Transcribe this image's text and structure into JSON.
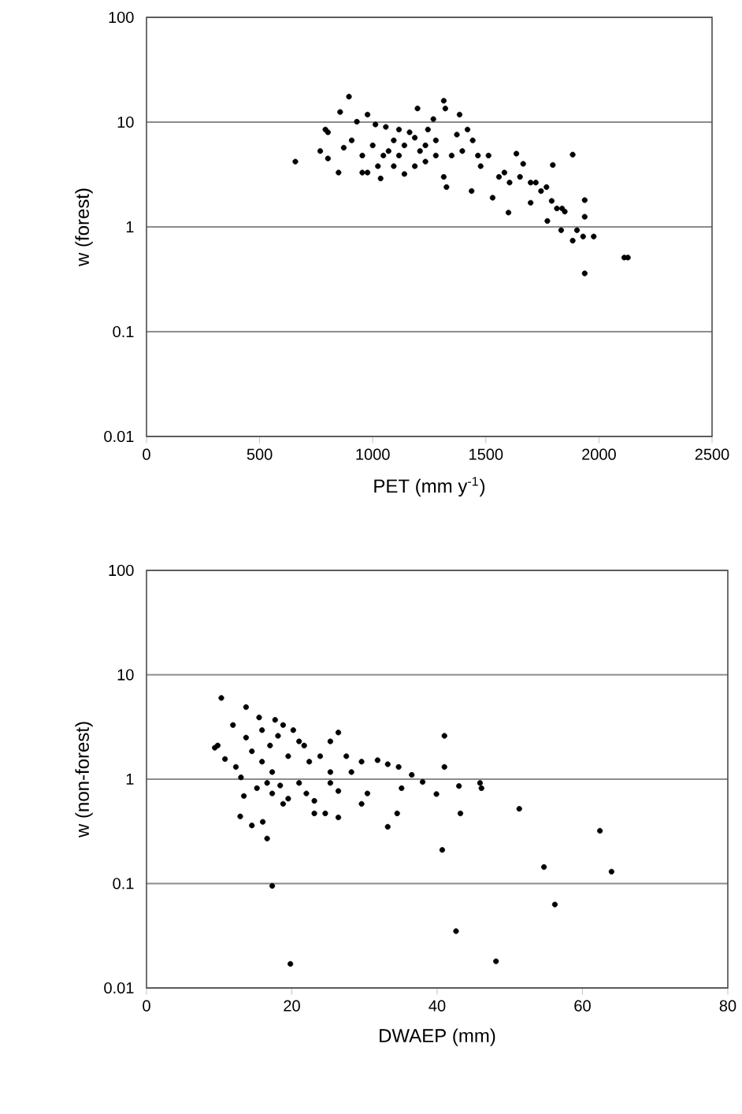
{
  "chart_data": [
    {
      "type": "scatter",
      "xlabel": "PET (mm y$^{-1}$)",
      "ylabel": "w (forest)",
      "color": "#000000",
      "log": "y",
      "grid": "y",
      "xlim": [
        0,
        2500
      ],
      "xticks": [
        0,
        500,
        1000,
        1500,
        2000,
        2500
      ],
      "ylim": [
        0.01,
        100
      ],
      "yticks": [
        0.01,
        0.1,
        1,
        10,
        100
      ],
      "x": [
        658,
        895,
        856,
        791,
        768,
        802,
        849,
        872,
        930,
        977,
        954,
        1035,
        1000,
        1058,
        1093,
        1116,
        1140,
        1163,
        1198,
        1209,
        1244,
        1268,
        1279,
        1314,
        1321,
        1384,
        1326,
        1314,
        1349,
        1372,
        1419,
        1442,
        1437,
        1477,
        1512,
        1530,
        1582,
        1600,
        1635,
        1651,
        1665,
        1698,
        1721,
        1768,
        1796,
        1772,
        1791,
        1837,
        1884,
        1833,
        1884,
        1903,
        1937,
        1937,
        1937,
        1930,
        1977,
        2112,
        2128,
        1070,
        1140,
        1186,
        1233,
        1279,
        1116,
        977,
        1023,
        1093,
        1186,
        1233,
        1396,
        1465,
        1558,
        1605,
        1698,
        1744,
        1814,
        1849,
        907,
        954,
        1047,
        802,
        1012
      ],
      "values": [
        4.2,
        17.5,
        12.5,
        8.5,
        5.3,
        4.5,
        3.3,
        5.7,
        10.1,
        11.8,
        3.3,
        2.9,
        6.0,
        9.0,
        6.7,
        4.8,
        3.2,
        8.0,
        13.5,
        5.3,
        8.5,
        10.7,
        6.7,
        16,
        13.5,
        11.8,
        2.4,
        3.0,
        4.8,
        7.6,
        8.5,
        6.7,
        2.2,
        3.8,
        4.8,
        1.9,
        3.3,
        1.37,
        5.0,
        3.0,
        4.0,
        1.7,
        2.65,
        2.4,
        3.9,
        1.14,
        1.77,
        1.5,
        4.9,
        0.93,
        0.74,
        0.93,
        1.8,
        1.25,
        0.36,
        0.81,
        0.81,
        0.51,
        0.51,
        5.3,
        6.0,
        7.1,
        6.0,
        4.8,
        8.5,
        3.3,
        3.8,
        3.8,
        3.8,
        4.2,
        5.3,
        4.8,
        3.0,
        2.65,
        2.65,
        2.2,
        1.5,
        1.4,
        6.7,
        4.8,
        4.8,
        8.0,
        9.5
      ]
    },
    {
      "type": "scatter",
      "xlabel": "DWAEP (mm)",
      "ylabel": "w (non-forest)",
      "color": "#000000",
      "log": "y",
      "grid": "y",
      "xlim": [
        0,
        80
      ],
      "xticks": [
        0,
        20,
        40,
        60,
        80
      ],
      "ylim": [
        0.01,
        100
      ],
      "yticks": [
        0.01,
        0.1,
        1,
        10,
        100
      ],
      "x": [
        10.3,
        13.7,
        9.4,
        11.9,
        15.5,
        17.7,
        26.4,
        25.3,
        41.0,
        41.0,
        12.9,
        14.5,
        16.0,
        16.6,
        17.3,
        19.8,
        33.2,
        34.5,
        40.7,
        42.6,
        43.2,
        48.1,
        51.3,
        54.7,
        56.2,
        62.4,
        64.0,
        46.1,
        45.9,
        43.0,
        39.9,
        38.0,
        36.5,
        35.1,
        34.7,
        33.2,
        31.8,
        30.4,
        29.6,
        29.6,
        28.2,
        26.4,
        24.6,
        23.1,
        23.1,
        22.0,
        21.0,
        19.5,
        18.4,
        17.3,
        15.9,
        14.5,
        13.0,
        12.3,
        10.8,
        9.8,
        13.4,
        15.2,
        18.1,
        20.2,
        21.7,
        19.5,
        17.0,
        23.9,
        25.3,
        27.5,
        13.7,
        15.9,
        18.8,
        21.0,
        22.4,
        17.3,
        18.8,
        16.6,
        25.3,
        26.4
      ],
      "values": [
        6.0,
        4.9,
        2.0,
        3.3,
        3.9,
        3.7,
        2.8,
        2.3,
        2.6,
        1.31,
        0.44,
        0.36,
        0.39,
        0.27,
        0.095,
        0.017,
        0.35,
        0.47,
        0.21,
        0.035,
        0.47,
        0.018,
        0.52,
        0.144,
        0.063,
        0.32,
        0.13,
        0.82,
        0.92,
        0.86,
        0.72,
        0.94,
        1.1,
        0.82,
        1.31,
        1.39,
        1.52,
        0.73,
        0.58,
        1.47,
        1.17,
        0.43,
        0.47,
        0.47,
        0.62,
        0.73,
        0.92,
        0.65,
        0.87,
        1.17,
        1.47,
        1.85,
        1.04,
        1.31,
        1.56,
        2.1,
        0.69,
        0.82,
        2.6,
        2.95,
        2.1,
        1.66,
        2.1,
        1.66,
        1.17,
        1.66,
        2.5,
        2.95,
        3.3,
        2.3,
        1.47,
        0.73,
        0.58,
        0.92,
        0.92,
        0.77
      ]
    }
  ]
}
